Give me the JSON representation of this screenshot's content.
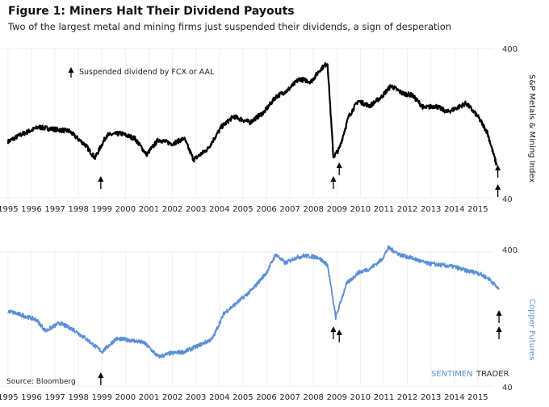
{
  "title": "Figure 1: Miners Halt Their Dividend Payouts",
  "subtitle": "Two of the largest metal and mining firms just suspended their dividends, a sign of desperation",
  "source": "Source: Bloomberg",
  "watermark": {
    "part1": "SENTIMEN",
    "part2": "TRADER"
  },
  "legend_note": "Suspended dividend by FCX or AAL",
  "chart_data": [
    {
      "type": "line",
      "ylabel": "S&P Metals & Mining Index",
      "yscale": "log",
      "ylim": [
        40,
        400
      ],
      "yticks": [
        "400",
        "40"
      ],
      "xticks": [
        "1995",
        "1996",
        "1997",
        "1998",
        "1999",
        "2000",
        "2001",
        "2002",
        "2003",
        "2004",
        "2005",
        "2006",
        "2007",
        "2008",
        "2009",
        "2010",
        "2011",
        "2012",
        "2013",
        "2014",
        "2015"
      ],
      "color": "#000000",
      "grid": "vertical",
      "x": [
        1995.0,
        1995.5,
        1996.3,
        1997.0,
        1997.6,
        1998.3,
        1998.7,
        1999.2,
        1999.8,
        2000.4,
        2000.9,
        2001.4,
        2002.0,
        2002.5,
        2002.9,
        2003.5,
        2004.1,
        2004.6,
        2005.3,
        2005.9,
        2006.4,
        2006.9,
        2007.4,
        2007.9,
        2008.3,
        2008.6,
        2008.85,
        2009.1,
        2009.5,
        2009.9,
        2010.4,
        2010.9,
        2011.3,
        2011.8,
        2012.2,
        2012.7,
        2013.2,
        2013.7,
        2014.1,
        2014.5,
        2015.0,
        2015.4,
        2015.8
      ],
      "values": [
        95,
        105,
        119,
        115,
        112,
        90,
        74,
        105,
        108,
        100,
        78,
        98,
        92,
        100,
        72,
        85,
        120,
        140,
        128,
        150,
        190,
        210,
        250,
        240,
        290,
        320,
        75,
        85,
        140,
        178,
        165,
        190,
        225,
        200,
        195,
        160,
        165,
        150,
        160,
        172,
        140,
        110,
        66
      ],
      "annotations": {
        "label": "Suspended dividend by FCX or AAL",
        "arrows_x": [
          1998.95,
          2008.85,
          2009.1,
          2015.85,
          2015.85
        ]
      }
    },
    {
      "type": "line",
      "ylabel": "Copper Futures",
      "yscale": "log",
      "ylim": [
        40,
        400
      ],
      "yticks": [
        "400",
        "40"
      ],
      "xticks": [
        "1995",
        "1996",
        "1997",
        "1998",
        "1999",
        "2000",
        "2001",
        "2002",
        "2003",
        "2004",
        "2005",
        "2006",
        "2007",
        "2008",
        "2009",
        "2010",
        "2011",
        "2012",
        "2013",
        "2014",
        "2015"
      ],
      "color": "#5b8fd4",
      "grid": "vertical",
      "x": [
        1995.0,
        1995.6,
        1996.2,
        1996.6,
        1997.2,
        1997.8,
        1998.4,
        1999.0,
        1999.6,
        2000.2,
        2000.8,
        2001.4,
        2001.9,
        2002.5,
        2003.1,
        2003.7,
        2004.2,
        2004.8,
        2005.4,
        2006.0,
        2006.4,
        2006.8,
        2007.2,
        2007.6,
        2008.2,
        2008.6,
        2008.95,
        2009.4,
        2009.9,
        2010.4,
        2010.9,
        2011.2,
        2011.7,
        2012.2,
        2012.8,
        2013.4,
        2014.0,
        2014.5,
        2015.0,
        2015.5,
        2015.9
      ],
      "values": [
        145,
        135,
        125,
        103,
        118,
        105,
        88,
        72,
        90,
        88,
        84,
        66,
        70,
        72,
        80,
        90,
        140,
        170,
        210,
        280,
        384,
        330,
        360,
        375,
        365,
        320,
        130,
        230,
        280,
        300,
        350,
        430,
        380,
        360,
        330,
        320,
        310,
        290,
        280,
        250,
        210
      ],
      "annotations": {
        "arrows_x": [
          1998.95,
          2008.85,
          2009.1,
          2015.9,
          2015.9
        ]
      }
    }
  ]
}
